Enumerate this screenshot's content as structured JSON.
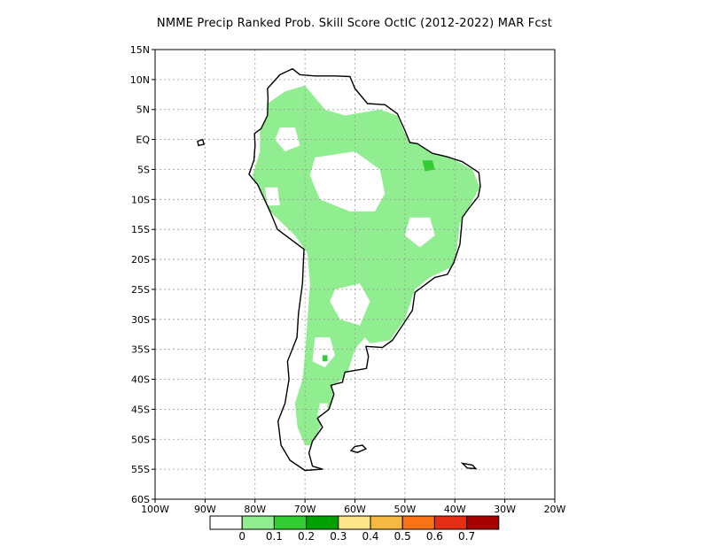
{
  "title": "NMME Precip Ranked Prob. Skill Score OctIC (2012-2022) MAR Fcst",
  "map": {
    "lon_range": [
      -100,
      -20
    ],
    "lat_range": [
      -60,
      15
    ],
    "lon_ticks": [
      {
        "value": -100,
        "label": "100W"
      },
      {
        "value": -90,
        "label": "90W"
      },
      {
        "value": -80,
        "label": "80W"
      },
      {
        "value": -70,
        "label": "70W"
      },
      {
        "value": -60,
        "label": "60W"
      },
      {
        "value": -50,
        "label": "50W"
      },
      {
        "value": -40,
        "label": "40W"
      },
      {
        "value": -30,
        "label": "30W"
      },
      {
        "value": -20,
        "label": "20W"
      }
    ],
    "lat_ticks": [
      {
        "value": 15,
        "label": "15N"
      },
      {
        "value": 10,
        "label": "10N"
      },
      {
        "value": 5,
        "label": "5N"
      },
      {
        "value": 0,
        "label": "EQ"
      },
      {
        "value": -5,
        "label": "5S"
      },
      {
        "value": -10,
        "label": "10S"
      },
      {
        "value": -15,
        "label": "15S"
      },
      {
        "value": -20,
        "label": "20S"
      },
      {
        "value": -25,
        "label": "25S"
      },
      {
        "value": -30,
        "label": "30S"
      },
      {
        "value": -35,
        "label": "35S"
      },
      {
        "value": -40,
        "label": "40S"
      },
      {
        "value": -45,
        "label": "45S"
      },
      {
        "value": -50,
        "label": "50S"
      },
      {
        "value": -55,
        "label": "55S"
      },
      {
        "value": -60,
        "label": "60S"
      }
    ],
    "gridlines": true,
    "continent_outline": [
      [
        -77.5,
        8.5
      ],
      [
        -75,
        10.8
      ],
      [
        -72.5,
        11.8
      ],
      [
        -71,
        10.8
      ],
      [
        -68,
        10.6
      ],
      [
        -64,
        10.6
      ],
      [
        -61,
        10.5
      ],
      [
        -60,
        8.5
      ],
      [
        -57.5,
        6
      ],
      [
        -54,
        5.8
      ],
      [
        -51.5,
        4.3
      ],
      [
        -50,
        1.5
      ],
      [
        -49,
        -0.5
      ],
      [
        -47.5,
        -0.7
      ],
      [
        -44.5,
        -2.3
      ],
      [
        -41.5,
        -2.9
      ],
      [
        -38.5,
        -3.7
      ],
      [
        -35.2,
        -5.5
      ],
      [
        -34.9,
        -7.8
      ],
      [
        -35.3,
        -9.5
      ],
      [
        -37.2,
        -11.5
      ],
      [
        -38.5,
        -13
      ],
      [
        -39,
        -17.5
      ],
      [
        -40.2,
        -20.5
      ],
      [
        -41.5,
        -22.5
      ],
      [
        -44,
        -23
      ],
      [
        -48,
        -25.5
      ],
      [
        -48.5,
        -28.5
      ],
      [
        -50.5,
        -31
      ],
      [
        -52.5,
        -33.5
      ],
      [
        -54.5,
        -34.7
      ],
      [
        -57.8,
        -34.5
      ],
      [
        -57.3,
        -36.2
      ],
      [
        -57.7,
        -38.2
      ],
      [
        -62,
        -38.8
      ],
      [
        -62.5,
        -40.5
      ],
      [
        -64.8,
        -41
      ],
      [
        -64.2,
        -42.5
      ],
      [
        -65.2,
        -45
      ],
      [
        -67.5,
        -46.5
      ],
      [
        -66.5,
        -48
      ],
      [
        -68.5,
        -50.3
      ],
      [
        -69.2,
        -52.3
      ],
      [
        -68.5,
        -54.5
      ],
      [
        -66.5,
        -55
      ],
      [
        -70,
        -55.2
      ],
      [
        -73,
        -53.5
      ],
      [
        -74.8,
        -51
      ],
      [
        -75.4,
        -47
      ],
      [
        -74,
        -44
      ],
      [
        -73.2,
        -40
      ],
      [
        -73.5,
        -37
      ],
      [
        -71.6,
        -33
      ],
      [
        -71.3,
        -29
      ],
      [
        -70.5,
        -24
      ],
      [
        -70.2,
        -18.3
      ],
      [
        -71.5,
        -17.5
      ],
      [
        -75.5,
        -15
      ],
      [
        -77,
        -12
      ],
      [
        -79.5,
        -7.5
      ],
      [
        -81.2,
        -5.8
      ],
      [
        -80.2,
        -3.4
      ],
      [
        -80,
        -1
      ],
      [
        -80.1,
        1
      ],
      [
        -78.8,
        1.8
      ],
      [
        -77.5,
        4
      ],
      [
        -77.4,
        7
      ],
      [
        -77.5,
        8.5
      ]
    ],
    "skill_regions": [
      {
        "level": 1,
        "color": "#90ee90",
        "points": [
          [
            -74,
            8
          ],
          [
            -70,
            9
          ],
          [
            -66,
            5
          ],
          [
            -62,
            4
          ],
          [
            -55,
            5
          ],
          [
            -51.5,
            4
          ],
          [
            -50,
            1
          ],
          [
            -47,
            -1
          ],
          [
            -41,
            -3
          ],
          [
            -36.5,
            -5
          ],
          [
            -35,
            -8
          ],
          [
            -37,
            -11
          ],
          [
            -39,
            -14
          ],
          [
            -40,
            -21
          ],
          [
            -45,
            -23
          ],
          [
            -48,
            -25
          ],
          [
            -50,
            -30
          ],
          [
            -53,
            -33.5
          ],
          [
            -57,
            -34
          ],
          [
            -58,
            -33
          ],
          [
            -60,
            -35
          ],
          [
            -61.5,
            -39
          ],
          [
            -64,
            -41
          ],
          [
            -65,
            -45
          ],
          [
            -67,
            -48
          ],
          [
            -68.5,
            -51
          ],
          [
            -70,
            -51
          ],
          [
            -71.5,
            -48
          ],
          [
            -72,
            -44
          ],
          [
            -70.5,
            -40
          ],
          [
            -70,
            -36
          ],
          [
            -69.5,
            -30
          ],
          [
            -69,
            -24
          ],
          [
            -69.5,
            -19
          ],
          [
            -72,
            -16
          ],
          [
            -77,
            -12
          ],
          [
            -80.5,
            -6
          ],
          [
            -79,
            -2
          ],
          [
            -79,
            2
          ],
          [
            -77.5,
            6
          ]
        ]
      },
      {
        "level": 0,
        "color": "#ffffff",
        "points": [
          [
            -68,
            -3
          ],
          [
            -60,
            -2
          ],
          [
            -55,
            -5
          ],
          [
            -54,
            -9
          ],
          [
            -56,
            -12
          ],
          [
            -61,
            -12
          ],
          [
            -67,
            -10
          ],
          [
            -69,
            -6
          ]
        ]
      },
      {
        "level": 0,
        "color": "#ffffff",
        "points": [
          [
            -75,
            2
          ],
          [
            -72,
            2
          ],
          [
            -71,
            -1
          ],
          [
            -74,
            -2
          ],
          [
            -76,
            0
          ]
        ]
      },
      {
        "level": 0,
        "color": "#ffffff",
        "points": [
          [
            -64,
            -25
          ],
          [
            -59,
            -24
          ],
          [
            -57,
            -27
          ],
          [
            -59,
            -31
          ],
          [
            -63,
            -30
          ],
          [
            -65,
            -27
          ]
        ]
      },
      {
        "level": 0,
        "color": "#ffffff",
        "points": [
          [
            -68,
            -33
          ],
          [
            -65,
            -33
          ],
          [
            -64,
            -36
          ],
          [
            -66,
            -38
          ],
          [
            -68.5,
            -37
          ]
        ]
      },
      {
        "level": 0,
        "color": "#ffffff",
        "points": [
          [
            -49,
            -13
          ],
          [
            -45,
            -13
          ],
          [
            -44,
            -16
          ],
          [
            -47,
            -18
          ],
          [
            -50,
            -16
          ]
        ]
      },
      {
        "level": 0,
        "color": "#ffffff",
        "points": [
          [
            -78,
            -8
          ],
          [
            -75.5,
            -8
          ],
          [
            -75,
            -11
          ],
          [
            -77.5,
            -11
          ]
        ]
      },
      {
        "level": 0,
        "color": "#ffffff",
        "points": [
          [
            -67,
            -44
          ],
          [
            -65.5,
            -44
          ],
          [
            -65.5,
            -46
          ],
          [
            -67.5,
            -46
          ]
        ]
      },
      {
        "level": 2,
        "color": "#32cd32",
        "points": [
          [
            -46.5,
            -3.5
          ],
          [
            -44.5,
            -3.5
          ],
          [
            -44,
            -5
          ],
          [
            -46,
            -5.3
          ]
        ]
      },
      {
        "level": 2,
        "color": "#32cd32",
        "points": [
          [
            -66.5,
            -36
          ],
          [
            -65.5,
            -36
          ],
          [
            -65.5,
            -37
          ],
          [
            -66.5,
            -37
          ]
        ]
      }
    ],
    "islands": [
      [
        [
          -60,
          -51.2
        ],
        [
          -58.5,
          -51
        ],
        [
          -57.8,
          -51.6
        ],
        [
          -59.5,
          -52.2
        ],
        [
          -60.8,
          -51.9
        ]
      ],
      [
        [
          -38.5,
          -54
        ],
        [
          -36.5,
          -54.3
        ],
        [
          -35.8,
          -54.9
        ],
        [
          -37.5,
          -54.8
        ]
      ],
      [
        [
          -91.5,
          -0.3
        ],
        [
          -90.5,
          0
        ],
        [
          -90.2,
          -0.8
        ],
        [
          -91.3,
          -1
        ]
      ]
    ]
  },
  "legend": {
    "colors": [
      "#ffffff",
      "#90ee90",
      "#32cd32",
      "#00a000",
      "#fde68a",
      "#f5b942",
      "#f97316",
      "#e62e16",
      "#a80000"
    ],
    "labels": [
      "0",
      "0.1",
      "0.2",
      "0.3",
      "0.4",
      "0.5",
      "0.6",
      "0.7"
    ]
  }
}
